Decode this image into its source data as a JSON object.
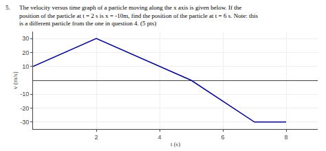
{
  "chart_data": {
    "type": "line",
    "title": "The velocity versus time graph of a particle moving along the x axis is given below. If the\nposition of the particle at t = 2 s is x = -10m, find the position of the particle at t = 6 s. Note: this\nis a different particle from the one in question 4. (5 pts)",
    "annotations": [
      "5."
    ],
    "x": [
      0,
      2,
      5,
      7,
      8
    ],
    "values": [
      10,
      30,
      0,
      -30,
      -30
    ],
    "xlabel": "t (s)",
    "ylabel": "v (m/s)",
    "xlim": [
      0,
      9
    ],
    "ylim": [
      -35,
      35
    ],
    "xticks": [
      2,
      4,
      6,
      8
    ],
    "yticks": [
      -30,
      -20,
      -10,
      10,
      20,
      30
    ],
    "color": "#00008B",
    "grid": true
  }
}
